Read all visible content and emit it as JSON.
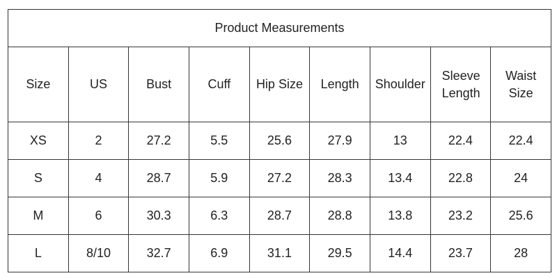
{
  "table": {
    "title": "Product Measurements",
    "headers": [
      "Size",
      "US",
      "Bust",
      "Cuff",
      "Hip Size",
      "Length",
      "Shoulder",
      "Sleeve Length",
      "Waist Size"
    ],
    "rows": [
      [
        "XS",
        2,
        27.2,
        5.5,
        25.6,
        27.9,
        13,
        22.4,
        22.4
      ],
      [
        "S",
        4,
        28.7,
        5.9,
        27.2,
        28.3,
        13.4,
        22.8,
        24
      ],
      [
        "M",
        6,
        30.3,
        6.3,
        28.7,
        28.8,
        13.8,
        23.2,
        25.6
      ],
      [
        "L",
        "8/10",
        32.7,
        6.9,
        31.1,
        29.5,
        14.4,
        23.7,
        28
      ]
    ]
  }
}
